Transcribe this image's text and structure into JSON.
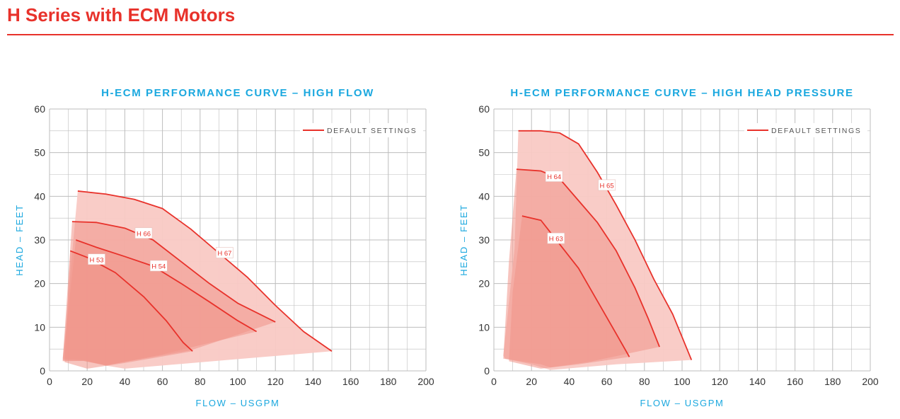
{
  "page": {
    "title": "H Series with ECM Motors"
  },
  "colors": {
    "accent": "#e8322b",
    "title_blue": "#1ba8df",
    "fill": "#f8c7c1",
    "grid": "#bdbdbd"
  },
  "chart_data": [
    {
      "type": "area",
      "title": "H-ECM PERFORMANCE CURVE – HIGH FLOW",
      "xlabel": "FLOW – USGPM",
      "ylabel": "HEAD – FEET",
      "xlim": [
        0,
        200
      ],
      "ylim": [
        0,
        60
      ],
      "xticks": [
        0,
        20,
        40,
        60,
        80,
        100,
        120,
        140,
        160,
        180,
        200
      ],
      "yticks": [
        0,
        10,
        20,
        30,
        40,
        50,
        60
      ],
      "grid": true,
      "legend": {
        "position": "top-right",
        "entries": [
          "DEFAULT SETTINGS"
        ]
      },
      "series": [
        {
          "name": "H 67",
          "curve": [
            [
              15,
              41.2
            ],
            [
              30,
              40.5
            ],
            [
              45,
              39.3
            ],
            [
              60,
              37.2
            ],
            [
              75,
              32.5
            ],
            [
              90,
              27
            ],
            [
              105,
              21.5
            ],
            [
              120,
              15
            ],
            [
              135,
              9
            ],
            [
              150,
              4.5
            ]
          ],
          "region": [
            [
              15,
              41.2
            ],
            [
              30,
              40.5
            ],
            [
              45,
              39.3
            ],
            [
              60,
              37.2
            ],
            [
              75,
              32.5
            ],
            [
              90,
              27
            ],
            [
              105,
              21.5
            ],
            [
              120,
              15
            ],
            [
              135,
              9
            ],
            [
              150,
              4.5
            ],
            [
              100,
              2.7
            ],
            [
              40,
              0.5
            ],
            [
              30,
              1.2
            ],
            [
              18,
              2.5
            ],
            [
              7,
              2.8
            ]
          ]
        },
        {
          "name": "H 66",
          "curve": [
            [
              12,
              34.2
            ],
            [
              25,
              34
            ],
            [
              40,
              32.7
            ],
            [
              55,
              30
            ],
            [
              70,
              25
            ],
            [
              85,
              20
            ],
            [
              100,
              15.5
            ],
            [
              120,
              11.2
            ]
          ],
          "region": [
            [
              12,
              34.2
            ],
            [
              25,
              34
            ],
            [
              40,
              32.7
            ],
            [
              55,
              30
            ],
            [
              70,
              25
            ],
            [
              85,
              20
            ],
            [
              100,
              15.5
            ],
            [
              120,
              11.2
            ],
            [
              75,
              4.7
            ],
            [
              30,
              1.3
            ],
            [
              18,
              2.3
            ],
            [
              7,
              2.4
            ]
          ]
        },
        {
          "name": "H 54",
          "curve": [
            [
              14,
              30
            ],
            [
              25,
              28.3
            ],
            [
              40,
              26.2
            ],
            [
              55,
              24
            ],
            [
              70,
              20
            ],
            [
              85,
              15.8
            ],
            [
              100,
              11.5
            ],
            [
              110,
              9
            ]
          ],
          "region": [
            [
              14,
              30
            ],
            [
              25,
              28.3
            ],
            [
              40,
              26.2
            ],
            [
              55,
              24
            ],
            [
              70,
              20
            ],
            [
              85,
              15.8
            ],
            [
              100,
              11.5
            ],
            [
              110,
              9
            ],
            [
              60,
              3.8
            ],
            [
              30,
              1.2
            ],
            [
              18,
              2.3
            ],
            [
              7,
              2.2
            ]
          ]
        },
        {
          "name": "H 53",
          "curve": [
            [
              11,
              27.5
            ],
            [
              20,
              26
            ],
            [
              35,
              22.5
            ],
            [
              50,
              17
            ],
            [
              62,
              11.5
            ],
            [
              71,
              6.5
            ],
            [
              76,
              4.5
            ]
          ],
          "region": [
            [
              11,
              27.5
            ],
            [
              20,
              26
            ],
            [
              35,
              22.5
            ],
            [
              50,
              17
            ],
            [
              62,
              11.5
            ],
            [
              71,
              6.5
            ],
            [
              76,
              4.5
            ],
            [
              40,
              1.8
            ],
            [
              20,
              0.5
            ],
            [
              8,
              2.0
            ]
          ]
        }
      ],
      "labels": [
        {
          "text": "H 53",
          "x": 25,
          "y": 25.5
        },
        {
          "text": "H 66",
          "x": 50,
          "y": 31.5
        },
        {
          "text": "H 54",
          "x": 58,
          "y": 24
        },
        {
          "text": "H 67",
          "x": 93,
          "y": 27
        }
      ]
    },
    {
      "type": "area",
      "title": "H-ECM PERFORMANCE CURVE – HIGH HEAD PRESSURE",
      "xlabel": "FLOW – USGPM",
      "ylabel": "HEAD – FEET",
      "xlim": [
        0,
        200
      ],
      "ylim": [
        0,
        60
      ],
      "xticks": [
        0,
        20,
        40,
        60,
        80,
        100,
        120,
        140,
        160,
        180,
        200
      ],
      "yticks": [
        0,
        10,
        20,
        30,
        40,
        50,
        60
      ],
      "grid": true,
      "legend": {
        "position": "top-right",
        "entries": [
          "DEFAULT SETTINGS"
        ]
      },
      "series": [
        {
          "name": "H 65",
          "curve": [
            [
              13,
              55
            ],
            [
              25,
              55
            ],
            [
              35,
              54.5
            ],
            [
              45,
              52
            ],
            [
              55,
              45.5
            ],
            [
              65,
              38
            ],
            [
              75,
              30
            ],
            [
              85,
              21
            ],
            [
              95,
              13
            ],
            [
              105,
              2.5
            ]
          ],
          "region": [
            [
              13,
              55
            ],
            [
              25,
              55
            ],
            [
              35,
              54.5
            ],
            [
              45,
              52
            ],
            [
              55,
              45.5
            ],
            [
              65,
              38
            ],
            [
              75,
              30
            ],
            [
              85,
              21
            ],
            [
              95,
              13
            ],
            [
              105,
              2.5
            ],
            [
              65,
              1.5
            ],
            [
              30,
              0.2
            ],
            [
              20,
              1.5
            ],
            [
              6,
              2.8
            ],
            [
              5,
              3.5
            ],
            [
              11,
              28
            ]
          ]
        },
        {
          "name": "H 64",
          "curve": [
            [
              12,
              46.2
            ],
            [
              25,
              45.8
            ],
            [
              35,
              44
            ],
            [
              45,
              39
            ],
            [
              55,
              34
            ],
            [
              65,
              27.5
            ],
            [
              75,
              19
            ],
            [
              82,
              12
            ],
            [
              88,
              5.5
            ]
          ],
          "region": [
            [
              12,
              46.2
            ],
            [
              25,
              45.8
            ],
            [
              35,
              44
            ],
            [
              45,
              39
            ],
            [
              55,
              34
            ],
            [
              65,
              27.5
            ],
            [
              75,
              19
            ],
            [
              82,
              12
            ],
            [
              88,
              5.5
            ],
            [
              50,
              2
            ],
            [
              30,
              0.8
            ],
            [
              25,
              1.5
            ],
            [
              5,
              2.8
            ],
            [
              8,
              25
            ]
          ]
        },
        {
          "name": "H 63",
          "curve": [
            [
              15,
              35.5
            ],
            [
              25,
              34.5
            ],
            [
              35,
              29
            ],
            [
              45,
              23.5
            ],
            [
              55,
              16
            ],
            [
              65,
              8.5
            ],
            [
              72,
              3.2
            ]
          ],
          "region": [
            [
              15,
              35.5
            ],
            [
              25,
              34.5
            ],
            [
              35,
              29
            ],
            [
              45,
              23.5
            ],
            [
              55,
              16
            ],
            [
              65,
              8.5
            ],
            [
              72,
              3.2
            ],
            [
              45,
              1.5
            ],
            [
              25,
              0.5
            ],
            [
              8,
              2.2
            ],
            [
              10,
              18
            ]
          ]
        }
      ],
      "labels": [
        {
          "text": "H 64",
          "x": 32,
          "y": 44.5
        },
        {
          "text": "H 65",
          "x": 60,
          "y": 42.5
        },
        {
          "text": "H 63",
          "x": 33,
          "y": 30.3
        }
      ]
    }
  ]
}
